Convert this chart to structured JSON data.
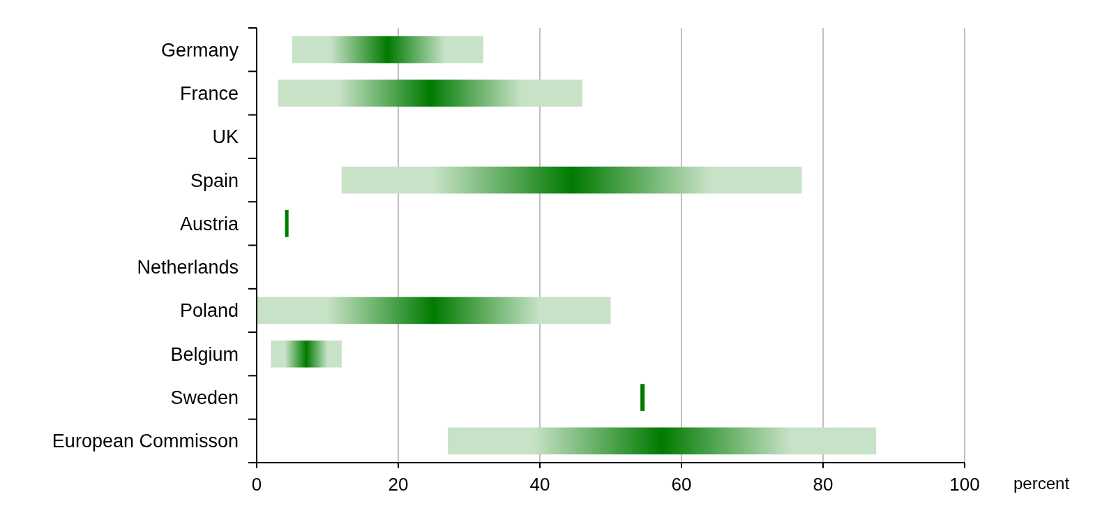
{
  "chart_data": {
    "type": "bar",
    "orientation": "horizontal",
    "xlabel": "percent",
    "categories": [
      "Germany",
      "France",
      "UK",
      "Spain",
      "Austria",
      "Netherlands",
      "Poland",
      "Belgium",
      "Sweden",
      "European Commisson"
    ],
    "base": [
      5,
      3,
      null,
      12,
      4,
      null,
      0,
      2,
      54.2,
      27
    ],
    "values": [
      27,
      43,
      null,
      65,
      0.5,
      null,
      50,
      10,
      0.6,
      60.5
    ],
    "color": "#007a00",
    "xlim": [
      0,
      100
    ],
    "xticks": [
      0,
      20,
      40,
      60,
      80,
      100
    ],
    "grid": "x"
  }
}
